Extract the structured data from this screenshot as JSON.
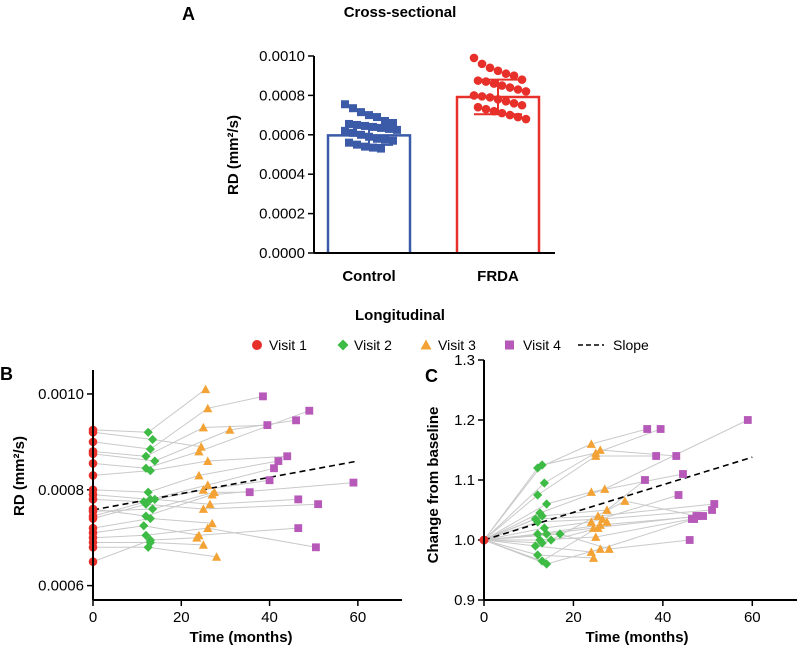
{
  "figure": {
    "panel_a_letter": "A",
    "panel_b_letter": "B",
    "panel_c_letter": "C",
    "longitudinal_title": "Longitudinal"
  },
  "legend": {
    "items": [
      {
        "label": "Visit 1",
        "symbol": "circle",
        "color": "#e8302a"
      },
      {
        "label": "Visit 2",
        "symbol": "diamond",
        "color": "#3dbb45"
      },
      {
        "label": "Visit 3",
        "symbol": "triangle",
        "color": "#f3a335"
      },
      {
        "label": "Visit 4",
        "symbol": "square",
        "color": "#b659b8"
      },
      {
        "label": "Slope",
        "symbol": "dashed-line",
        "color": "#000000"
      }
    ]
  },
  "chart_data": [
    {
      "id": "A",
      "type": "bar",
      "title": "Cross-sectional",
      "xlabel": "",
      "ylabel": "RD (mm²/s)",
      "ylim": [
        0,
        0.001
      ],
      "yticks": [
        "0.0000",
        "0.0002",
        "0.0004",
        "0.0006",
        "0.0008",
        "0.0010"
      ],
      "categories": [
        "Control",
        "FRDA"
      ],
      "values": [
        0.000597,
        0.000792
      ],
      "errors": [
        4.8e-05,
        8.8e-05
      ],
      "colors": [
        "#3b5aa7",
        "#e8302a"
      ],
      "points": [
        [
          0.000755,
          0.000735,
          0.000715,
          0.0007,
          0.00069,
          0.00067,
          0.00066,
          0.000655,
          0.00065,
          0.000645,
          0.00064,
          0.000635,
          0.00063,
          0.000625,
          0.00062,
          0.00061,
          0.0006,
          0.00059,
          0.00058,
          0.000575,
          0.00057,
          0.00056,
          0.00055,
          0.00054,
          0.000535,
          0.00053
        ],
        [
          0.00099,
          0.00096,
          0.00094,
          0.000925,
          0.00091,
          0.0009,
          0.00088,
          0.000875,
          0.00087,
          0.00086,
          0.00085,
          0.00084,
          0.00083,
          0.00082,
          0.0008,
          0.000795,
          0.00079,
          0.00078,
          0.00077,
          0.00076,
          0.00075,
          0.00074,
          0.00073,
          0.00072,
          0.00071,
          0.0007,
          0.00069,
          0.00068
        ]
      ]
    },
    {
      "id": "B",
      "type": "scatter",
      "title": "",
      "xlabel": "Time (months)",
      "ylabel": "RD (mm²/s)",
      "xlim": [
        0,
        70
      ],
      "ylim": [
        0.00057,
        0.00105
      ],
      "xticks": [
        0,
        20,
        40,
        60
      ],
      "yticks": [
        "0.0006",
        "0.0008",
        "0.0010"
      ],
      "ytick_values": [
        0.0006,
        0.0008,
        0.001
      ],
      "slope": {
        "x": [
          0,
          60
        ],
        "y": [
          0.000758,
          0.00086
        ]
      },
      "subjects": [
        [
          [
            0,
            0.000925
          ],
          [
            12.5,
            0.00092
          ],
          [
            25.5,
            0.00101
          ]
        ],
        [
          [
            0,
            0.00092
          ],
          [
            13.5,
            0.000905
          ],
          [
            24.5,
            0.00089
          ]
        ],
        [
          [
            0,
            0.0009
          ],
          [
            13,
            0.000885
          ],
          [
            26,
            0.00097
          ],
          [
            38.5,
            0.000995
          ]
        ],
        [
          [
            0,
            0.00088
          ],
          [
            12,
            0.00087
          ],
          [
            25,
            0.00093
          ],
          [
            39.5,
            0.000935
          ]
        ],
        [
          [
            0,
            0.000875
          ],
          [
            14,
            0.00086
          ],
          [
            31,
            0.000925
          ],
          [
            46,
            0.000945
          ]
        ],
        [
          [
            0,
            0.000855
          ],
          [
            12,
            0.000845
          ],
          [
            24,
            0.00088
          ],
          [
            49,
            0.000965
          ]
        ],
        [
          [
            0,
            0.00083
          ],
          [
            13,
            0.00084
          ],
          [
            26,
            0.00086
          ],
          [
            44,
            0.00087
          ]
        ],
        [
          [
            0,
            0.0008
          ],
          [
            12.5,
            0.000795
          ],
          [
            24,
            0.00083
          ],
          [
            42,
            0.00086
          ]
        ],
        [
          [
            0,
            0.00079
          ],
          [
            13,
            0.00078
          ],
          [
            26,
            0.00081
          ],
          [
            41,
            0.000845
          ]
        ],
        [
          [
            0,
            0.00078
          ],
          [
            11.5,
            0.000775
          ],
          [
            25,
            0.0008
          ],
          [
            40,
            0.00082
          ]
        ],
        [
          [
            0,
            0.00076
          ],
          [
            12,
            0.000745
          ],
          [
            27,
            0.00079
          ],
          [
            59,
            0.000815
          ]
        ],
        [
          [
            0,
            0.000755
          ],
          [
            13.5,
            0.00076
          ],
          [
            27.5,
            0.000795
          ],
          [
            35.5,
            0.000795
          ]
        ],
        [
          [
            0,
            0.000745
          ],
          [
            14,
            0.00078
          ],
          [
            26.5,
            0.00077
          ],
          [
            46.5,
            0.00078
          ]
        ],
        [
          [
            0,
            0.00074
          ],
          [
            12,
            0.00077
          ],
          [
            25,
            0.00076
          ],
          [
            51,
            0.00077
          ]
        ],
        [
          [
            0,
            0.00072
          ],
          [
            13,
            0.00074
          ],
          [
            27,
            0.00073
          ]
        ],
        [
          [
            0,
            0.00071
          ],
          [
            11.5,
            0.000725
          ],
          [
            24,
            0.000705
          ],
          [
            46.5,
            0.00072
          ]
        ],
        [
          [
            0,
            0.0007
          ],
          [
            12,
            0.000705
          ],
          [
            26,
            0.00072
          ],
          [
            50.5,
            0.00068
          ]
        ],
        [
          [
            0,
            0.00069
          ],
          [
            13,
            0.00069
          ],
          [
            25,
            0.000685
          ]
        ],
        [
          [
            0,
            0.00068
          ],
          [
            12.5,
            0.00068
          ],
          [
            28,
            0.00066
          ]
        ],
        [
          [
            0,
            0.00065
          ],
          [
            13,
            0.000695
          ],
          [
            23.5,
            0.0007
          ]
        ]
      ]
    },
    {
      "id": "C",
      "type": "scatter",
      "title": "",
      "xlabel": "Time (months)",
      "ylabel": "Change from baseline",
      "xlim": [
        0,
        70
      ],
      "ylim": [
        0.9,
        1.3
      ],
      "xticks": [
        0,
        20,
        40,
        60
      ],
      "yticks": [
        "0.9",
        "1.0",
        "1.1",
        "1.2",
        "1.3"
      ],
      "ytick_values": [
        0.9,
        1.0,
        1.1,
        1.2,
        1.3
      ],
      "slope": {
        "x": [
          0,
          60
        ],
        "y": [
          1.0,
          1.138
        ]
      },
      "subjects": [
        [
          [
            0,
            1.0
          ],
          [
            12,
            1.12
          ],
          [
            24,
            1.16
          ],
          [
            36.5,
            1.185
          ]
        ],
        [
          [
            0,
            1.0
          ],
          [
            13,
            1.125
          ],
          [
            25,
            1.145
          ],
          [
            39.5,
            1.185
          ]
        ],
        [
          [
            0,
            1.0
          ],
          [
            13.5,
            1.095
          ],
          [
            26,
            1.15
          ],
          [
            43,
            1.14
          ]
        ],
        [
          [
            0,
            1.0
          ],
          [
            12,
            1.075
          ],
          [
            25,
            1.14
          ],
          [
            38.5,
            1.14
          ]
        ],
        [
          [
            0,
            1.0
          ],
          [
            14,
            1.06
          ],
          [
            24,
            1.08
          ],
          [
            44.5,
            1.11
          ]
        ],
        [
          [
            0,
            1.0
          ],
          [
            12.5,
            1.045
          ],
          [
            27,
            1.085
          ],
          [
            59,
            1.2
          ]
        ],
        [
          [
            0,
            1.0
          ],
          [
            13,
            1.04
          ],
          [
            27.5,
            1.05
          ],
          [
            36,
            1.1
          ]
        ],
        [
          [
            0,
            1.0
          ],
          [
            11.5,
            1.035
          ],
          [
            25.5,
            1.04
          ],
          [
            51.5,
            1.06
          ]
        ],
        [
          [
            0,
            1.0
          ],
          [
            12,
            1.03
          ],
          [
            26.5,
            1.035
          ],
          [
            51,
            1.05
          ]
        ],
        [
          [
            0,
            1.0
          ],
          [
            13.5,
            1.02
          ],
          [
            24,
            1.03
          ],
          [
            43.5,
            1.075
          ]
        ],
        [
          [
            0,
            1.0
          ],
          [
            12,
            1.01
          ],
          [
            26,
            1.025
          ],
          [
            49,
            1.04
          ]
        ],
        [
          [
            0,
            1.0
          ],
          [
            14,
            1.01
          ],
          [
            24.5,
            1.02
          ],
          [
            48,
            1.04
          ]
        ],
        [
          [
            0,
            1.0
          ],
          [
            15,
            1.0
          ],
          [
            31.5,
            1.065
          ],
          [
            47.5,
            1.04
          ]
        ],
        [
          [
            0,
            1.0
          ],
          [
            12.5,
            1.0
          ],
          [
            25,
            1.005
          ],
          [
            46.5,
            1.035
          ]
        ],
        [
          [
            0,
            1.0
          ],
          [
            11.5,
            0.99
          ],
          [
            24,
            0.98
          ],
          [
            47,
            1.035
          ]
        ],
        [
          [
            0,
            1.0
          ],
          [
            17,
            1.01
          ],
          [
            28,
            0.985
          ],
          [
            46,
            1.0
          ]
        ],
        [
          [
            0,
            1.0
          ],
          [
            12,
            0.975
          ],
          [
            24.5,
            0.97
          ]
        ],
        [
          [
            0,
            1.0
          ],
          [
            13,
            0.965
          ],
          [
            27.5,
            1.03
          ]
        ],
        [
          [
            0,
            1.0
          ],
          [
            14,
            0.96
          ],
          [
            26,
            0.985
          ]
        ],
        [
          [
            0,
            1.0
          ],
          [
            13,
            0.995
          ],
          [
            25.5,
            1.02
          ]
        ]
      ]
    }
  ]
}
